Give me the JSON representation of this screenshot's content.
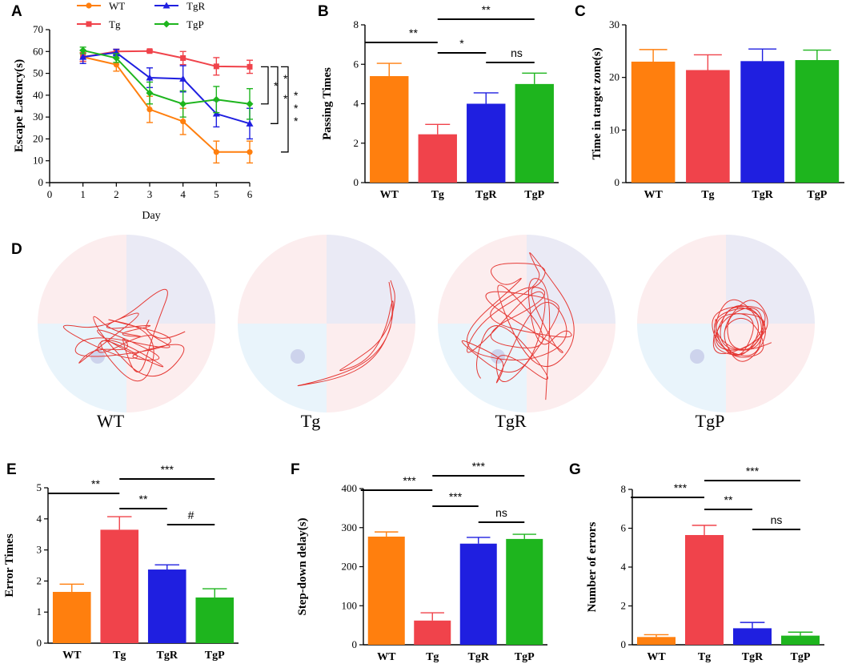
{
  "colors": {
    "WT": "#FF7F0E",
    "Tg": "#F0434B",
    "TgR": "#1F1FE0",
    "TgP": "#1EB51E"
  },
  "panel_A": {
    "label": "A",
    "legend": [
      "WT",
      "Tg",
      "TgR",
      "TgP"
    ],
    "sig_marks": [
      "*",
      "*",
      "*",
      "*",
      "*",
      "*"
    ]
  },
  "panel_D": {
    "label": "D",
    "captions": [
      "WT",
      "Tg",
      "TgR",
      "TgP"
    ]
  },
  "chart_data": [
    {
      "type": "line",
      "panel": "A",
      "title": "",
      "xlabel": "Day",
      "ylabel": "Escape Latency(s)",
      "x": [
        1,
        2,
        3,
        4,
        5,
        6
      ],
      "xlim": [
        0,
        6
      ],
      "xticks": [
        "0",
        "1",
        "2",
        "3",
        "4",
        "5",
        "6"
      ],
      "ylim": [
        0,
        70
      ],
      "yticks": [
        "0",
        "10",
        "20",
        "30",
        "40",
        "50",
        "60",
        "70"
      ],
      "series": [
        {
          "name": "WT",
          "values": [
            57.5,
            54,
            33.5,
            28,
            14,
            14
          ],
          "errors": [
            2,
            3,
            6,
            6,
            5,
            5
          ]
        },
        {
          "name": "Tg",
          "values": [
            57.5,
            60,
            60.2,
            57,
            53.2,
            53
          ],
          "errors": [
            2,
            1,
            0.5,
            3,
            4,
            3
          ]
        },
        {
          "name": "TgR",
          "values": [
            57.5,
            59.5,
            48,
            47.5,
            31.5,
            27
          ],
          "errors": [
            3,
            1.5,
            4.5,
            6,
            6,
            7
          ]
        },
        {
          "name": "TgP",
          "values": [
            60.5,
            57,
            41,
            36,
            38,
            36
          ],
          "errors": [
            1.5,
            2,
            5,
            6,
            6,
            7
          ]
        }
      ]
    },
    {
      "type": "bar",
      "panel": "B",
      "ylabel": "Passing Times",
      "categories": [
        "WT",
        "Tg",
        "TgR",
        "TgP"
      ],
      "values": [
        5.4,
        2.45,
        4.0,
        5.0
      ],
      "errors": [
        0.65,
        0.5,
        0.55,
        0.55
      ],
      "ylim": [
        0,
        8
      ],
      "yticks": [
        "0",
        "2",
        "4",
        "6",
        "8"
      ],
      "significance": [
        {
          "from": "WT",
          "to": "Tg",
          "label": "**"
        },
        {
          "from": "Tg",
          "to": "TgP",
          "label": "**"
        },
        {
          "from": "Tg",
          "to": "TgR",
          "label": "*"
        },
        {
          "from": "TgR",
          "to": "TgP",
          "label": "ns"
        }
      ]
    },
    {
      "type": "bar",
      "panel": "C",
      "ylabel": "Time in target zone(s)",
      "categories": [
        "WT",
        "Tg",
        "TgR",
        "TgP"
      ],
      "values": [
        23.0,
        21.4,
        23.1,
        23.3
      ],
      "errors": [
        2.3,
        2.9,
        2.3,
        1.9
      ],
      "ylim": [
        0,
        30
      ],
      "yticks": [
        "0",
        "10",
        "20",
        "30"
      ],
      "significance": []
    },
    {
      "type": "bar",
      "panel": "E",
      "ylabel": "Error Times",
      "categories": [
        "WT",
        "Tg",
        "TgR",
        "TgP"
      ],
      "values": [
        1.65,
        3.65,
        2.37,
        1.47
      ],
      "errors": [
        0.25,
        0.42,
        0.15,
        0.28
      ],
      "ylim": [
        0,
        5
      ],
      "yticks": [
        "0",
        "1",
        "2",
        "3",
        "4",
        "5"
      ],
      "significance": [
        {
          "from": "WT",
          "to": "Tg",
          "label": "**"
        },
        {
          "from": "Tg",
          "to": "TgP",
          "label": "***"
        },
        {
          "from": "Tg",
          "to": "TgR",
          "label": "**"
        },
        {
          "from": "TgR",
          "to": "TgP",
          "label": "#"
        }
      ]
    },
    {
      "type": "bar",
      "panel": "F",
      "ylabel": "Step-down delay(s)",
      "categories": [
        "WT",
        "Tg",
        "TgR",
        "TgP"
      ],
      "values": [
        277,
        62,
        259,
        271
      ],
      "errors": [
        12,
        20,
        16,
        12
      ],
      "ylim": [
        0,
        400
      ],
      "yticks": [
        "0",
        "100",
        "200",
        "300",
        "400"
      ],
      "significance": [
        {
          "from": "WT",
          "to": "Tg",
          "label": "***"
        },
        {
          "from": "Tg",
          "to": "TgP",
          "label": "***"
        },
        {
          "from": "Tg",
          "to": "TgR",
          "label": "***"
        },
        {
          "from": "TgR",
          "to": "TgP",
          "label": "ns"
        }
      ]
    },
    {
      "type": "bar",
      "panel": "G",
      "ylabel": "Number of errors",
      "categories": [
        "WT",
        "Tg",
        "TgR",
        "TgP"
      ],
      "values": [
        0.4,
        5.65,
        0.85,
        0.47
      ],
      "errors": [
        0.12,
        0.5,
        0.3,
        0.18
      ],
      "ylim": [
        0,
        8
      ],
      "yticks": [
        "0",
        "2",
        "4",
        "6",
        "8"
      ],
      "significance": [
        {
          "from": "WT",
          "to": "Tg",
          "label": "***"
        },
        {
          "from": "Tg",
          "to": "TgP",
          "label": "***"
        },
        {
          "from": "Tg",
          "to": "TgR",
          "label": "**"
        },
        {
          "from": "TgR",
          "to": "TgP",
          "label": "ns"
        }
      ]
    }
  ]
}
